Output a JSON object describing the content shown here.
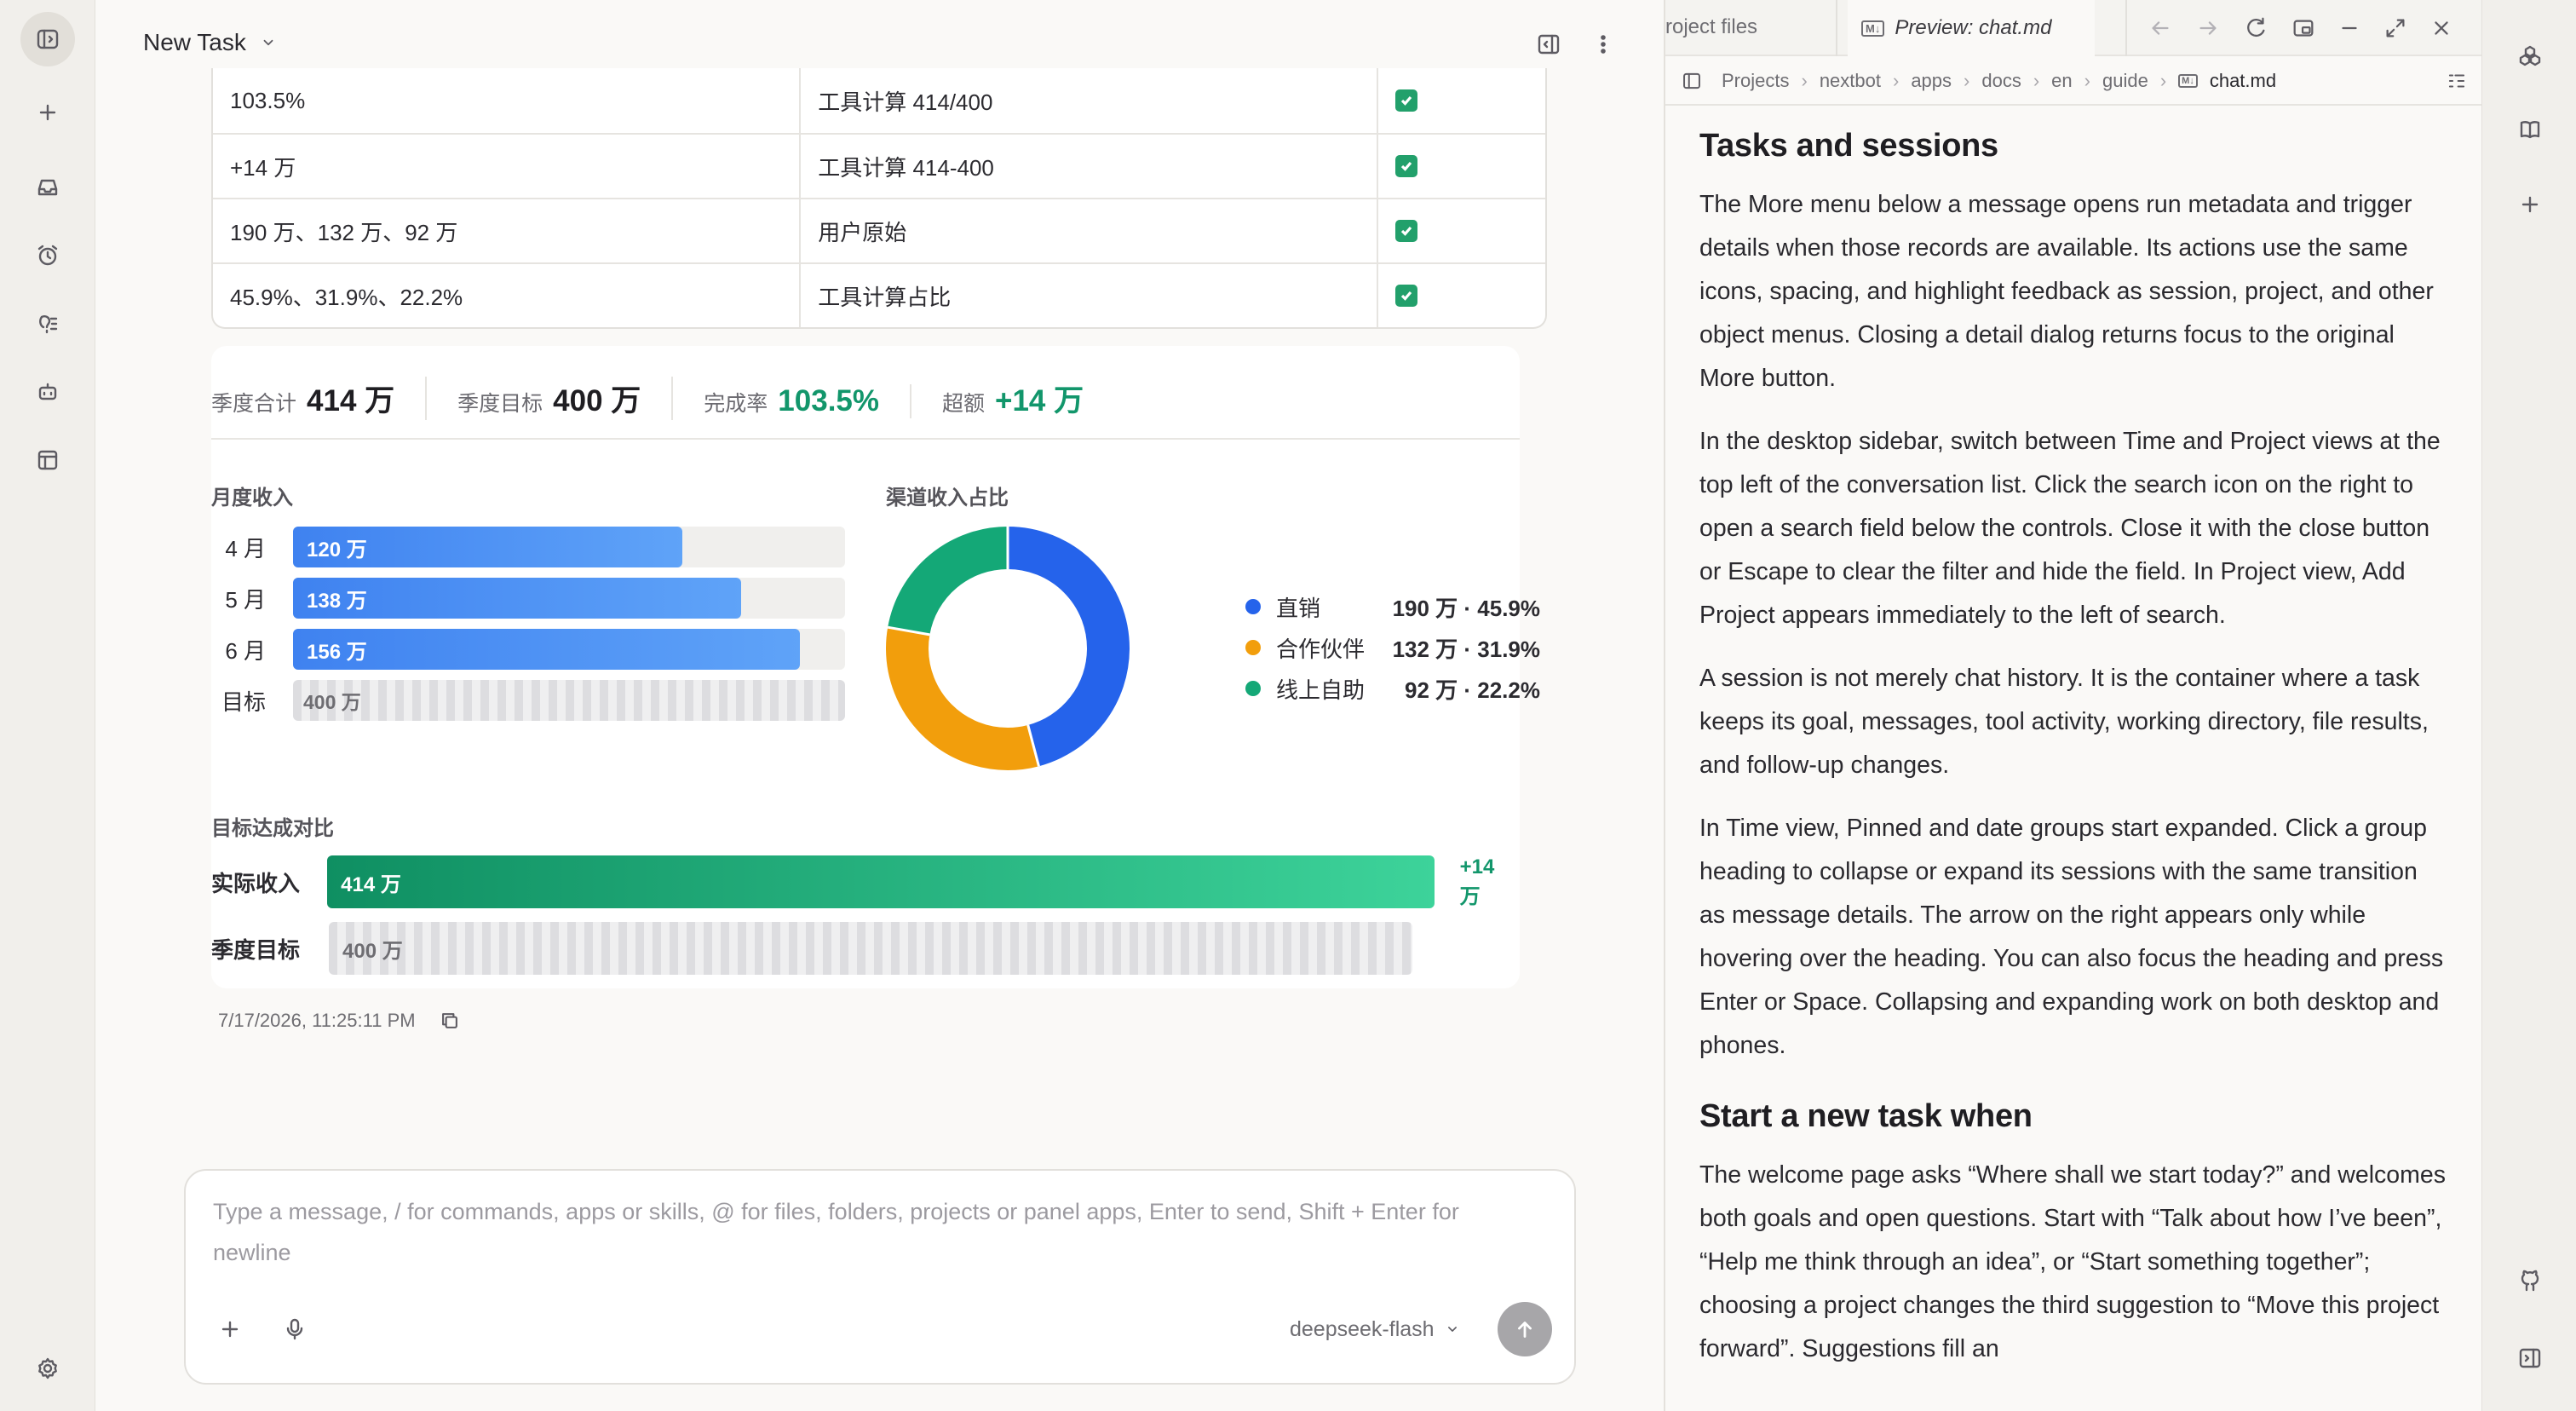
{
  "window": {
    "tab_files": "roject files",
    "tab_preview": "Preview: chat.md"
  },
  "chat_header": {
    "title": "New Task"
  },
  "table": {
    "rows": [
      [
        "103.5%",
        "工具计算 414/400"
      ],
      [
        "+14 万",
        "工具计算 414-400"
      ],
      [
        "190 万、132 万、92 万",
        "用户原始"
      ],
      [
        "45.9%、31.9%、22.2%",
        "工具计算占比"
      ]
    ]
  },
  "kpis": [
    {
      "label": "季度合计",
      "value": "414 万"
    },
    {
      "label": "季度目标",
      "value": "400 万"
    },
    {
      "label": "完成率",
      "value": "103.5%"
    },
    {
      "label": "超额",
      "value": "+14 万"
    }
  ],
  "chart_data": [
    {
      "type": "bar",
      "title": "月度收入",
      "categories": [
        "4 月",
        "5 月",
        "6 月"
      ],
      "values": [
        120,
        138,
        156
      ],
      "value_labels": [
        "120 万",
        "138 万",
        "156 万"
      ],
      "target": {
        "label": "目标",
        "value": 400,
        "value_label": "400 万"
      },
      "xlim": [
        0,
        170
      ],
      "color": "#3f82f0"
    },
    {
      "type": "pie",
      "title": "渠道收入占比",
      "donut": true,
      "slices": [
        {
          "name": "直销",
          "value": 190,
          "percent": 45.9,
          "label": "190 万 · 45.9%",
          "color": "#2563eb"
        },
        {
          "name": "合作伙伴",
          "value": 132,
          "percent": 31.9,
          "label": "132 万 · 31.9%",
          "color": "#f29e0c"
        },
        {
          "name": "线上自助",
          "value": 92,
          "percent": 22.2,
          "label": "92 万 · 22.2%",
          "color": "#14a877"
        }
      ],
      "legend": "right"
    },
    {
      "type": "bar",
      "title": "目标达成对比",
      "orientation": "horizontal",
      "categories": [
        "实际收入",
        "季度目标"
      ],
      "values": [
        414,
        400
      ],
      "value_labels": [
        "414 万",
        "400 万"
      ],
      "annotation": "+14 万",
      "xlim": [
        0,
        420
      ],
      "colors": [
        "#12966b",
        "#d6d6d9"
      ]
    }
  ],
  "message_meta": {
    "timestamp": "7/17/2026, 11:25:11 PM"
  },
  "composer": {
    "placeholder_line1": "Type a message, / for commands, apps or skills, @ for files, folders, projects or panel apps, Enter to send, Shift + Enter for",
    "placeholder_line2": "newline",
    "model": "deepseek-flash"
  },
  "breadcrumbs": [
    "Projects",
    "nextbot",
    "apps",
    "docs",
    "en",
    "guide",
    "chat.md"
  ],
  "doc": {
    "h1": "Tasks and sessions",
    "p1": "The More menu below a message opens run metadata and trigger details when those records are available. Its actions use the same icons, spacing, and highlight feedback as session, project, and other object menus. Closing a detail dialog returns focus to the original More button.",
    "p2": "In the desktop sidebar, switch between Time and Project views at the top left of the conversation list. Click the search icon on the right to open a search field below the controls. Close it with the close button or Escape to clear the filter and hide the field. In Project view, Add Project appears immediately to the left of search.",
    "p3": "A session is not merely chat history. It is the container where a task keeps its goal, messages, tool activity, working directory, file results, and follow-up changes.",
    "p4": "In Time view, Pinned and date groups start expanded. Click a group heading to collapse or expand its sessions with the same transition as message details. The arrow on the right appears only while hovering over the heading. You can also focus the heading and press Enter or Space. Collapsing and expanding work on both desktop and phones.",
    "h2": "Start a new task when",
    "p5": "The welcome page asks “Where shall we start today?” and welcomes both goals and open questions. Start with “Talk about how I’ve been”, “Help me think through an idea”, or “Start something together”; choosing a project changes the third suggestion to “Move this project forward”. Suggestions fill an"
  }
}
